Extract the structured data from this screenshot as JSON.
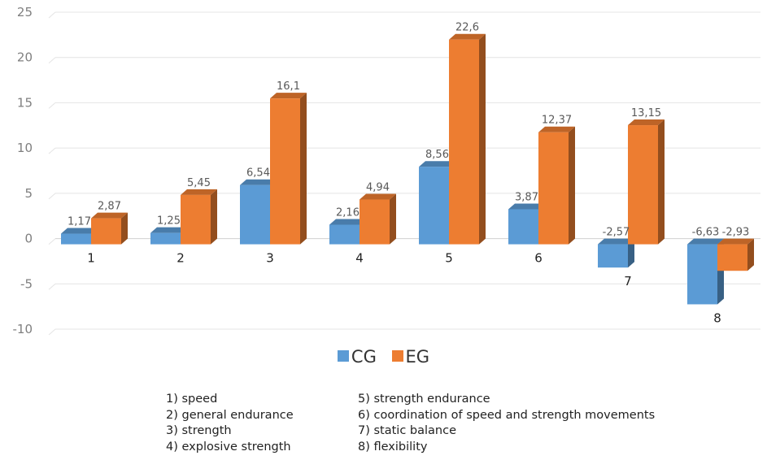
{
  "chart_data": {
    "type": "bar",
    "categories": [
      "1",
      "2",
      "3",
      "4",
      "5",
      "6",
      "7",
      "8"
    ],
    "series": [
      {
        "name": "CG",
        "color": "#5b9bd5",
        "values": [
          1.17,
          1.25,
          6.54,
          2.16,
          8.56,
          3.87,
          -2.57,
          -6.63
        ],
        "labels": [
          "1,17",
          "1,25",
          "6,54",
          "2,16",
          "8,56",
          "3,87",
          "-2,57",
          "-6,63"
        ]
      },
      {
        "name": "EG",
        "color": "#ed7d31",
        "values": [
          2.87,
          5.45,
          16.1,
          4.94,
          22.6,
          12.37,
          13.15,
          -2.93
        ],
        "labels": [
          "2,87",
          "5,45",
          "16,1",
          "4,94",
          "22,6",
          "12,37",
          "13,15",
          "-2,93"
        ]
      }
    ],
    "y_ticks": [
      -10,
      -5,
      0,
      5,
      10,
      15,
      20,
      25
    ],
    "y_tick_labels": [
      "-10",
      "-5",
      "0",
      "5",
      "10",
      "15",
      "20",
      "25"
    ],
    "ylim": [
      -10,
      25
    ],
    "grid": true,
    "legend_position": "bottom",
    "title": "",
    "xlabel": "",
    "ylabel": ""
  },
  "legend_notes": {
    "left": [
      "1) speed",
      "2) general endurance",
      "3) strength",
      "4) explosive strength"
    ],
    "right": [
      "5) strength endurance",
      "6) coordination of speed and strength movements",
      "7) static balance",
      "8) flexibility"
    ]
  }
}
